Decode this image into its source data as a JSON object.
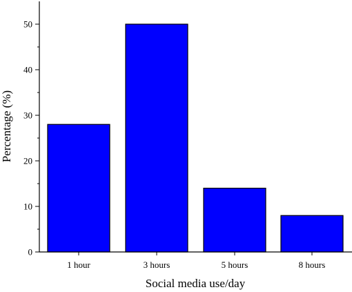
{
  "chart_data": {
    "type": "bar",
    "categories": [
      "1 hour",
      "3 hours",
      "5 hours",
      "8 hours"
    ],
    "values": [
      28,
      50,
      14,
      8
    ],
    "xlabel": "Social media use/day",
    "ylabel": "Percentage (%)",
    "ylim": [
      0,
      55
    ],
    "yticks": [
      0,
      10,
      20,
      30,
      40,
      50
    ],
    "grid": false,
    "bar_color": "#0000ff",
    "edge_color": "#000000"
  }
}
